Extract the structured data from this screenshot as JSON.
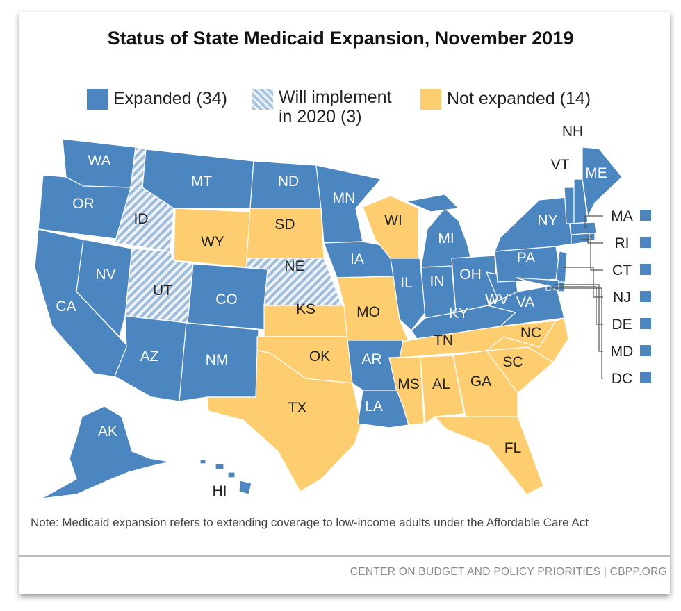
{
  "title": "Status of State Medicaid Expansion, November 2019",
  "colors": {
    "expanded": "#4b86c1",
    "will_implement": "#a9c4de",
    "not_expanded": "#fdcd6f"
  },
  "legend": [
    {
      "key": "expanded",
      "label": "Expanded (34)"
    },
    {
      "key": "will_implement",
      "label": "Will implement in 2020 (3)"
    },
    {
      "key": "not_expanded",
      "label": "Not expanded (14)"
    }
  ],
  "states": {
    "WA": "expanded",
    "OR": "expanded",
    "CA": "expanded",
    "NV": "expanded",
    "ID": "will_implement",
    "MT": "expanded",
    "WY": "not_expanded",
    "UT": "will_implement",
    "AZ": "expanded",
    "CO": "expanded",
    "NM": "expanded",
    "ND": "expanded",
    "SD": "not_expanded",
    "NE": "will_implement",
    "KS": "not_expanded",
    "OK": "not_expanded",
    "TX": "not_expanded",
    "MN": "expanded",
    "IA": "expanded",
    "MO": "not_expanded",
    "AR": "expanded",
    "LA": "expanded",
    "WI": "not_expanded",
    "IL": "expanded",
    "MI": "expanded",
    "IN": "expanded",
    "OH": "expanded",
    "KY": "expanded",
    "TN": "not_expanded",
    "MS": "not_expanded",
    "AL": "not_expanded",
    "GA": "not_expanded",
    "FL": "not_expanded",
    "SC": "not_expanded",
    "NC": "not_expanded",
    "VA": "expanded",
    "WV": "expanded",
    "PA": "expanded",
    "NY": "expanded",
    "VT": "expanded",
    "NH": "expanded",
    "ME": "expanded",
    "MA": "expanded",
    "RI": "expanded",
    "CT": "expanded",
    "NJ": "expanded",
    "DE": "expanded",
    "MD": "expanded",
    "DC": "expanded",
    "AK": "expanded",
    "HI": "expanded"
  },
  "small_state_labels": [
    "MA",
    "RI",
    "CT",
    "NJ",
    "DE",
    "MD",
    "DC"
  ],
  "note": "Note: Medicaid expansion refers to extending coverage to low-income adults under the Affordable Care Act",
  "credit": "CENTER ON BUDGET AND POLICY PRIORITIES | CBPP.ORG"
}
